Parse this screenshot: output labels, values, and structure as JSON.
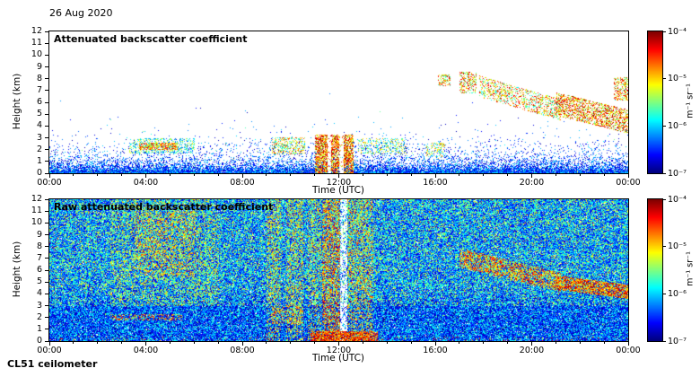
{
  "date_label": "26 Aug 2020",
  "instrument_label": "CL51 ceilometer",
  "axes": {
    "x_label": "Time (UTC)",
    "y_label": "Height (km)",
    "x_ticks": [
      "00:00",
      "04:00",
      "08:00",
      "12:00",
      "16:00",
      "20:00",
      "00:00"
    ],
    "y_ticks": [
      "0",
      "1",
      "2",
      "3",
      "4",
      "5",
      "6",
      "7",
      "8",
      "9",
      "10",
      "11",
      "12"
    ]
  },
  "colorbar": {
    "unit_label": "m⁻¹ sr⁻¹",
    "colormap": "jet",
    "scale": "log",
    "ticks": [
      {
        "label": "10⁻⁴",
        "frac": 0
      },
      {
        "label": "10⁻⁵",
        "frac": 0.3333
      },
      {
        "label": "10⁻⁶",
        "frac": 0.6667
      },
      {
        "label": "10⁻⁷",
        "frac": 1
      }
    ]
  },
  "chart_data": [
    {
      "type": "heatmap",
      "title": "Attenuated backscatter coefficient",
      "xlabel": "Time (UTC)",
      "ylabel": "Height (km)",
      "xlim_hours": [
        0,
        24
      ],
      "ylim_km": [
        0,
        12
      ],
      "x_ticks": [
        "00:00",
        "04:00",
        "08:00",
        "12:00",
        "16:00",
        "20:00",
        "00:00"
      ],
      "colorbar_range": [
        "1e-7",
        "1e-4"
      ],
      "colorbar_units": "m⁻¹ sr⁻¹",
      "colormap": "jet",
      "background": "white",
      "base": "clean",
      "boundary_layer": {
        "decay_km": 0.75,
        "max_density": 0.93,
        "value": [
          0.04,
          0.34
        ]
      },
      "features": [
        {
          "t": [
            0,
            24
          ],
          "h": [
            0,
            0.15
          ],
          "d": 0.95,
          "v": [
            0.08,
            0.4
          ]
        },
        {
          "t": [
            3.3,
            6.0
          ],
          "h": [
            1.7,
            3.0
          ],
          "d": 0.35,
          "v": [
            0.2,
            0.65
          ]
        },
        {
          "t": [
            3.7,
            5.3
          ],
          "h": [
            2.0,
            2.6
          ],
          "d": 0.75,
          "v": [
            0.45,
            0.95
          ]
        },
        {
          "t": [
            6.0,
            16.0
          ],
          "h": [
            2.0,
            2.6
          ],
          "d": 0.05,
          "v": [
            0.08,
            0.3
          ]
        },
        {
          "t": [
            9.2,
            10.6
          ],
          "h": [
            1.6,
            3.1
          ],
          "d": 0.4,
          "v": [
            0.3,
            0.85
          ]
        },
        {
          "t": [
            11.0,
            12.6
          ],
          "h": [
            0,
            3.3
          ],
          "d": 0.75,
          "v": [
            0.5,
            1.0
          ]
        },
        {
          "t": [
            11.5,
            11.65
          ],
          "h": [
            0,
            3.3
          ],
          "d": 0.85,
          "w": true
        },
        {
          "t": [
            12.0,
            12.2
          ],
          "h": [
            0,
            3.3
          ],
          "d": 0.85,
          "w": true
        },
        {
          "t": [
            12.8,
            14.8
          ],
          "h": [
            1.6,
            3.0
          ],
          "d": 0.28,
          "v": [
            0.2,
            0.75
          ]
        },
        {
          "t": [
            15.6,
            16.4
          ],
          "h": [
            1.4,
            2.6
          ],
          "d": 0.32,
          "v": [
            0.25,
            0.8
          ]
        },
        {
          "t": [
            16.1,
            16.6
          ],
          "h": [
            7.4,
            8.4
          ],
          "d": 0.45,
          "v": [
            0.4,
            0.95
          ]
        },
        {
          "t": [
            17.0,
            17.7
          ],
          "h": [
            6.8,
            8.6
          ],
          "d": 0.45,
          "v": [
            0.4,
            0.95
          ]
        },
        {
          "t": [
            17.8,
            21.2
          ],
          "hc": [
            7.4,
            5.4
          ],
          "th": 0.9,
          "d": 0.38,
          "v": [
            0.35,
            0.95
          ]
        },
        {
          "t": [
            21.0,
            24.0
          ],
          "hc": [
            5.9,
            4.4
          ],
          "th": 1.0,
          "d": 0.55,
          "v": [
            0.45,
            1.0
          ]
        },
        {
          "t": [
            23.4,
            24.0
          ],
          "h": [
            6.2,
            8.2
          ],
          "d": 0.45,
          "v": [
            0.4,
            0.95
          ]
        }
      ]
    },
    {
      "type": "heatmap",
      "title": "Raw attenuated backscatter coefficient",
      "xlabel": "Time (UTC)",
      "ylabel": "Height (km)",
      "xlim_hours": [
        0,
        24
      ],
      "ylim_km": [
        0,
        12
      ],
      "x_ticks": [
        "00:00",
        "04:00",
        "08:00",
        "12:00",
        "16:00",
        "20:00",
        "00:00"
      ],
      "colorbar_range": [
        "1e-7",
        "1e-4"
      ],
      "colorbar_units": "m⁻¹ sr⁻¹",
      "colormap": "jet",
      "background": "noise",
      "base": "noise",
      "features": [
        {
          "t": [
            2.5,
            7.0
          ],
          "h": [
            3.0,
            12.0
          ],
          "d": 0.18,
          "v": [
            0.45,
            0.75
          ]
        },
        {
          "t": [
            3.5,
            6.0
          ],
          "h": [
            5.5,
            11.0
          ],
          "d": 0.22,
          "v": [
            0.55,
            0.85
          ]
        },
        {
          "t": [
            2.5,
            5.5
          ],
          "h": [
            1.8,
            2.3
          ],
          "d": 0.3,
          "v": [
            0.55,
            0.9
          ]
        },
        {
          "t": [
            9.0,
            9.6
          ],
          "h": [
            0,
            12
          ],
          "d": 0.3,
          "v": [
            0.45,
            0.8
          ]
        },
        {
          "t": [
            9.8,
            10.5
          ],
          "h": [
            0,
            12
          ],
          "d": 0.3,
          "v": [
            0.45,
            0.8
          ]
        },
        {
          "t": [
            10.7,
            11.25
          ],
          "h": [
            0,
            12
          ],
          "d": 0.28,
          "v": [
            0.45,
            0.8
          ]
        },
        {
          "t": [
            11.3,
            12.05
          ],
          "h": [
            0,
            12
          ],
          "d": 0.5,
          "v": [
            0.5,
            0.95
          ]
        },
        {
          "t": [
            12.05,
            12.35
          ],
          "h": [
            0,
            12
          ],
          "d": 0.7,
          "w": true
        },
        {
          "t": [
            12.35,
            13.4
          ],
          "h": [
            0,
            12
          ],
          "d": 0.35,
          "v": [
            0.45,
            0.85
          ]
        },
        {
          "t": [
            9.2,
            10.5
          ],
          "h": [
            1.5,
            3.0
          ],
          "d": 0.35,
          "v": [
            0.4,
            0.9
          ]
        },
        {
          "t": [
            10.8,
            13.6
          ],
          "h": [
            0,
            0.9
          ],
          "d": 0.8,
          "v": [
            0.65,
            1.0
          ]
        },
        {
          "t": [
            17.0,
            21.2
          ],
          "hc": [
            7.1,
            5.0
          ],
          "th": 0.8,
          "d": 0.55,
          "v": [
            0.5,
            0.95
          ]
        },
        {
          "t": [
            21.0,
            24.0
          ],
          "hc": [
            5.0,
            4.2
          ],
          "th": 0.6,
          "d": 0.75,
          "v": [
            0.55,
            1.0
          ]
        },
        {
          "t": [
            0,
            24
          ],
          "h": [
            0,
            0.4
          ],
          "d": 0.05,
          "v": [
            0.6,
            0.95
          ]
        }
      ]
    }
  ]
}
